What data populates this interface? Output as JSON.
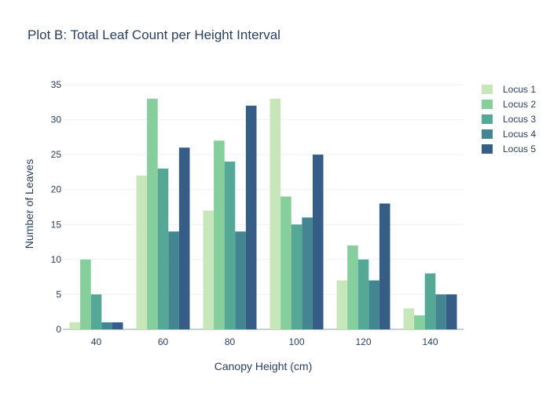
{
  "chart_data": {
    "type": "bar",
    "title": "Plot B: Total Leaf Count per Height Interval",
    "xlabel": "Canopy Height (cm)",
    "ylabel": "Number of Leaves",
    "categories": [
      "40",
      "60",
      "80",
      "100",
      "120",
      "140"
    ],
    "ylim": [
      0,
      35
    ],
    "yticks": [
      0,
      5,
      10,
      15,
      20,
      25,
      30,
      35
    ],
    "grid": true,
    "legend_position": "top-right",
    "series": [
      {
        "name": "Locus 1",
        "color": "#c7e7bb",
        "values": [
          1,
          22,
          17,
          33,
          7,
          3
        ]
      },
      {
        "name": "Locus 2",
        "color": "#86cf9c",
        "values": [
          10,
          33,
          27,
          19,
          12,
          2
        ]
      },
      {
        "name": "Locus 3",
        "color": "#55a896",
        "values": [
          5,
          23,
          24,
          15,
          10,
          8
        ]
      },
      {
        "name": "Locus 4",
        "color": "#438590",
        "values": [
          1,
          14,
          14,
          16,
          7,
          5
        ]
      },
      {
        "name": "Locus 5",
        "color": "#365d86",
        "values": [
          1,
          26,
          32,
          25,
          18,
          5
        ]
      }
    ],
    "colors": {
      "text": "#2a3f5f",
      "grid": "#eef1f5",
      "axis": "#2a3f5f"
    }
  }
}
